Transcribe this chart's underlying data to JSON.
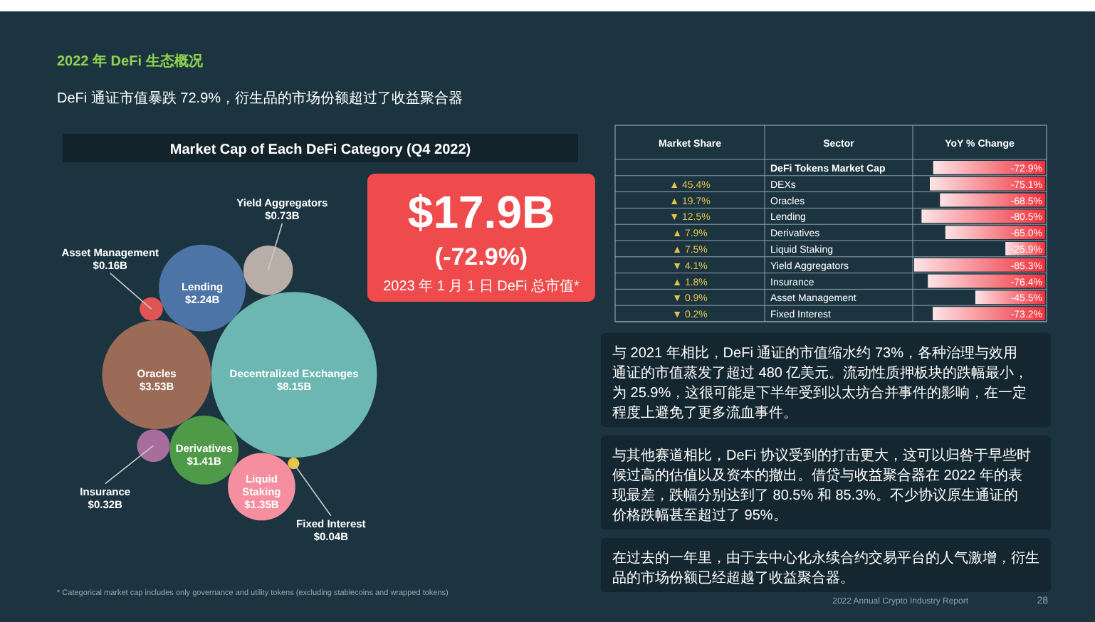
{
  "chart_data": [
    {
      "type": "other",
      "title": "Market Cap of Each DeFi Category (Q4 2022)",
      "categories": [
        "Decentralized Exchanges",
        "Oracles",
        "Lending",
        "Derivatives",
        "Liquid Staking",
        "Yield Aggregators",
        "Insurance",
        "Asset Management",
        "Fixed Interest"
      ],
      "values": [
        8.15,
        3.53,
        2.24,
        1.41,
        1.35,
        0.73,
        0.32,
        0.16,
        0.04
      ],
      "value_labels": [
        "$8.15B",
        "$3.53B",
        "$2.24B",
        "$1.41B",
        "$1.35B",
        "$0.73B",
        "$0.32B",
        "$0.16B",
        "$0.04B"
      ],
      "colors": [
        "#6cb7b1",
        "#9c6b58",
        "#4c74a6",
        "#4f9a48",
        "#f58fa0",
        "#b9ada7",
        "#a66d9d",
        "#e05454",
        "#e8c440"
      ],
      "annotations": [
        "2022 年 DeFi 生态概况",
        "DeFi 通证市值暴跌 72.9%，衍生品的市场份额超过了收益聚合器",
        "$17.9B",
        "(-72.9%)",
        "2023 年 1 月 1 日 DeFi 总市值*",
        "* Categorical market cap includes only governance and utility tokens (excluding stablecoins and wrapped tokens)"
      ]
    },
    {
      "type": "bar",
      "orientation": "horizontal",
      "xlabel": "YoY % Change",
      "ylabel": "Sector",
      "categories": [
        "DeFi Tokens Market Cap",
        "DEXs",
        "Oracles",
        "Lending",
        "Derivatives",
        "Liquid Staking",
        "Yield Aggregators",
        "Insurance",
        "Asset Management",
        "Fixed Interest"
      ],
      "values": [
        -72.9,
        -75.1,
        -68.5,
        -80.5,
        -65.0,
        -25.9,
        -85.3,
        -76.4,
        -45.5,
        -73.2
      ],
      "value_labels": [
        "-72.9%",
        "-75.1%",
        "-68.5%",
        "-80.5%",
        "-65.0%",
        "-25.9%",
        "-85.3%",
        "-76.4%",
        "-45.5%",
        "-73.2%"
      ],
      "color": "#f2303c",
      "annotations": [
        "Market Share",
        "▲ 45.4%",
        "▲ 19.7%",
        "▼ 12.5%",
        "▲ 7.9%",
        "▲ 7.5%",
        "▼ 4.1%",
        "▲ 1.8%",
        "▼ 0.9%",
        "▼ 0.2%",
        "与 2021 年相比，DeFi 通证的市值缩水约 73%，各种治理与效用通证的市值蒸发了超过 480 亿美元。流动性质押板块的跌幅最小，为 25.9%，这很可能是下半年受到以太坊合并事件的影响，在一定程度上避免了更多流血事件。",
        "与其他赛道相比，DeFi 协议受到的打击更大，这可以归咎于早些时候过高的估值以及资本的撤出。借贷与收益聚合器在 2022 年的表现最差，跌幅分别达到了 80.5% 和 85.3%。不少协议原生通证的价格跌幅甚至超过了 95%。",
        "在过去的一年里，由于去中心化永续合约交易平台的人气激增，衍生品的市场份额已经超越了收益聚合器。",
        "2022 Annual Crypto Industry Report",
        "28"
      ]
    }
  ]
}
